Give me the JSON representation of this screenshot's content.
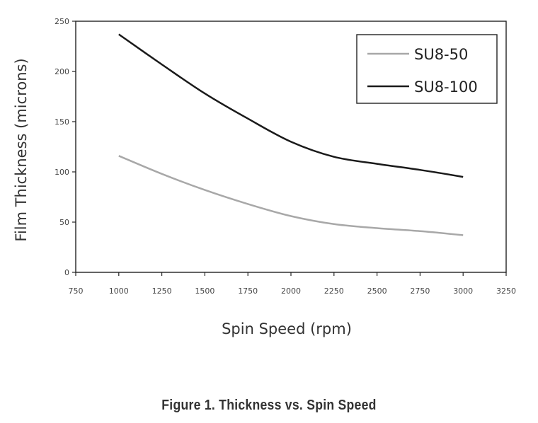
{
  "caption": "Figure 1. Thickness vs. Spin Speed",
  "chart_data": {
    "type": "line",
    "xlabel": "Spin Speed (rpm)",
    "ylabel": "Film Thickness (microns)",
    "xlim": [
      750,
      3250
    ],
    "ylim": [
      0,
      250
    ],
    "x_ticks": [
      750,
      1000,
      1250,
      1500,
      1750,
      2000,
      2250,
      2500,
      2750,
      3000,
      3250
    ],
    "y_ticks": [
      0,
      50,
      100,
      150,
      200,
      250
    ],
    "grid": false,
    "legend_position": "top-right",
    "series": [
      {
        "name": "SU8-50",
        "color": "#a8a8a8",
        "x": [
          1000,
          1250,
          1500,
          1750,
          2000,
          2250,
          2500,
          2750,
          3000
        ],
        "y": [
          116,
          98,
          82,
          68,
          56,
          48,
          44,
          41,
          37
        ]
      },
      {
        "name": "SU8-100",
        "color": "#1a1a1a",
        "x": [
          1000,
          1250,
          1500,
          1750,
          2000,
          2250,
          2500,
          2750,
          3000
        ],
        "y": [
          237,
          207,
          178,
          153,
          130,
          115,
          108,
          102,
          95
        ]
      }
    ]
  }
}
